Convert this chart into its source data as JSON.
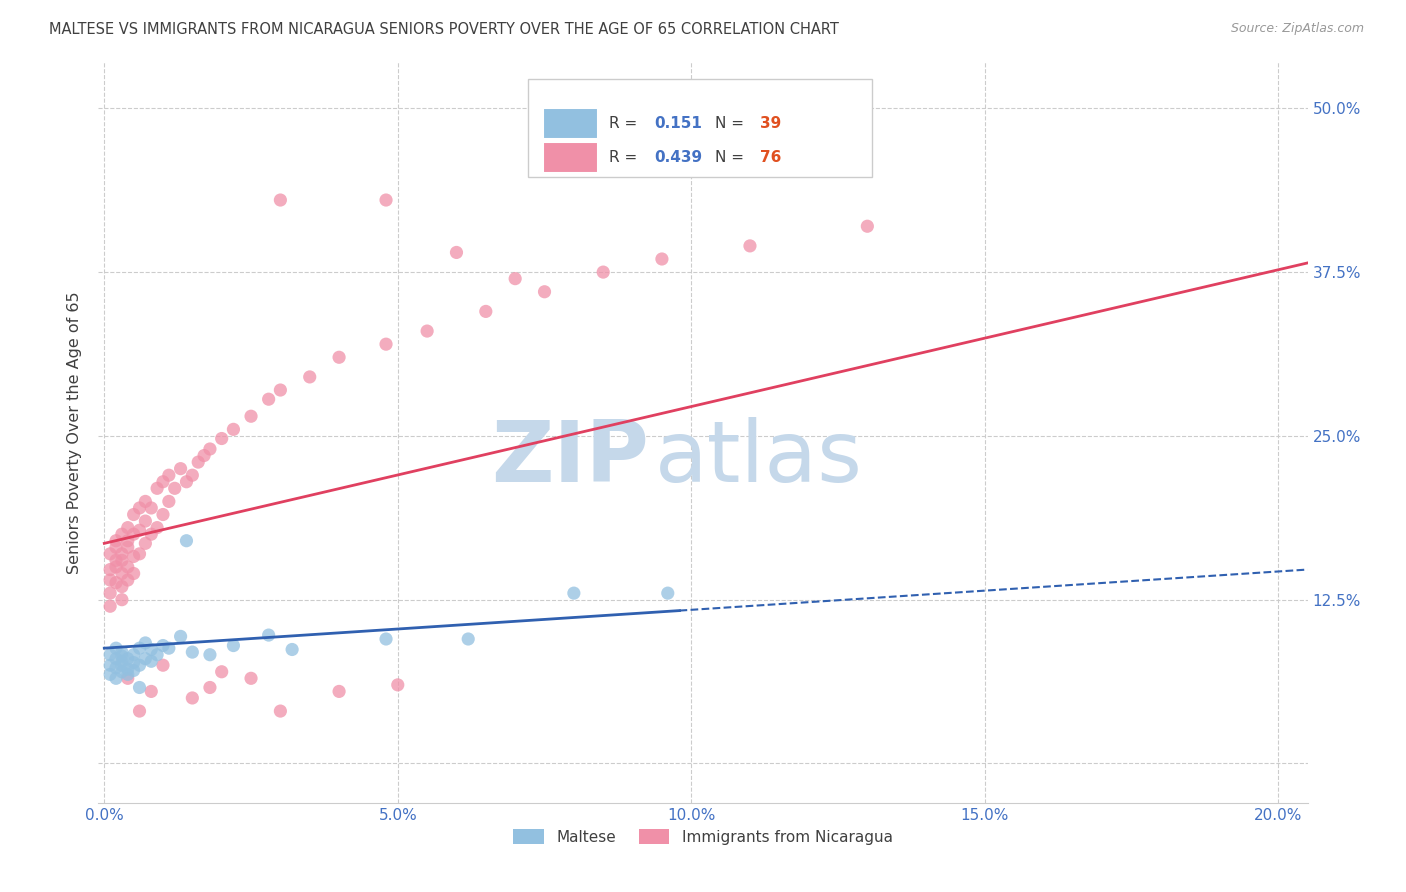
{
  "title": "MALTESE VS IMMIGRANTS FROM NICARAGUA SENIORS POVERTY OVER THE AGE OF 65 CORRELATION CHART",
  "source": "Source: ZipAtlas.com",
  "ylabel": "Seniors Poverty Over the Age of 65",
  "ytick_values": [
    0.0,
    0.125,
    0.25,
    0.375,
    0.5
  ],
  "xtick_values": [
    0.0,
    0.05,
    0.1,
    0.15,
    0.2
  ],
  "xlim": [
    -0.001,
    0.205
  ],
  "ylim": [
    -0.03,
    0.535
  ],
  "legend_R_values": [
    "0.151",
    "0.439"
  ],
  "legend_N_values": [
    "39",
    "76"
  ],
  "maltese_color": "#92c0e0",
  "nicaragua_color": "#f090a8",
  "trendline_maltese_solid_color": "#3060b0",
  "trendline_maltese_dash_color": "#3060b0",
  "trendline_nicaragua_color": "#e04060",
  "watermark_zip": "ZIP",
  "watermark_atlas": "atlas",
  "watermark_color": "#c5d8ea",
  "background_color": "#ffffff",
  "grid_color": "#cccccc",
  "axis_label_color": "#4472c4",
  "title_color": "#404040",
  "trendline_nicaragua_x0": 0.0,
  "trendline_nicaragua_y0": 0.168,
  "trendline_nicaragua_x1": 0.205,
  "trendline_nicaragua_y1": 0.382,
  "trendline_maltese_x0": 0.0,
  "trendline_maltese_y0": 0.088,
  "trendline_maltese_x1": 0.205,
  "trendline_maltese_y1": 0.148,
  "trendline_maltese_solid_end": 0.098,
  "maltese_x": [
    0.001,
    0.001,
    0.001,
    0.002,
    0.002,
    0.002,
    0.002,
    0.003,
    0.003,
    0.003,
    0.003,
    0.003,
    0.004,
    0.004,
    0.004,
    0.005,
    0.005,
    0.005,
    0.006,
    0.006,
    0.007,
    0.007,
    0.008,
    0.008,
    0.009,
    0.01,
    0.011,
    0.013,
    0.015,
    0.018,
    0.022,
    0.028,
    0.032,
    0.048,
    0.062,
    0.08,
    0.096,
    0.014,
    0.006
  ],
  "maltese_y": [
    0.075,
    0.083,
    0.068,
    0.08,
    0.073,
    0.088,
    0.065,
    0.078,
    0.082,
    0.07,
    0.085,
    0.075,
    0.072,
    0.08,
    0.068,
    0.083,
    0.077,
    0.071,
    0.088,
    0.075,
    0.092,
    0.08,
    0.087,
    0.078,
    0.083,
    0.09,
    0.088,
    0.097,
    0.085,
    0.083,
    0.09,
    0.098,
    0.087,
    0.095,
    0.095,
    0.13,
    0.13,
    0.17,
    0.058
  ],
  "nicaragua_x": [
    0.001,
    0.001,
    0.001,
    0.001,
    0.001,
    0.002,
    0.002,
    0.002,
    0.002,
    0.002,
    0.003,
    0.003,
    0.003,
    0.003,
    0.003,
    0.003,
    0.004,
    0.004,
    0.004,
    0.004,
    0.004,
    0.005,
    0.005,
    0.005,
    0.005,
    0.006,
    0.006,
    0.006,
    0.007,
    0.007,
    0.007,
    0.008,
    0.008,
    0.009,
    0.009,
    0.01,
    0.01,
    0.011,
    0.011,
    0.012,
    0.013,
    0.014,
    0.015,
    0.016,
    0.017,
    0.018,
    0.02,
    0.022,
    0.025,
    0.028,
    0.03,
    0.035,
    0.04,
    0.048,
    0.055,
    0.065,
    0.075,
    0.085,
    0.095,
    0.11,
    0.13,
    0.05,
    0.04,
    0.03,
    0.025,
    0.02,
    0.018,
    0.015,
    0.01,
    0.008,
    0.006,
    0.004,
    0.03,
    0.048,
    0.06,
    0.07
  ],
  "nicaragua_y": [
    0.13,
    0.148,
    0.16,
    0.12,
    0.14,
    0.155,
    0.17,
    0.138,
    0.15,
    0.165,
    0.125,
    0.145,
    0.16,
    0.175,
    0.135,
    0.155,
    0.14,
    0.165,
    0.18,
    0.15,
    0.17,
    0.158,
    0.175,
    0.19,
    0.145,
    0.16,
    0.178,
    0.195,
    0.168,
    0.185,
    0.2,
    0.175,
    0.195,
    0.18,
    0.21,
    0.19,
    0.215,
    0.2,
    0.22,
    0.21,
    0.225,
    0.215,
    0.22,
    0.23,
    0.235,
    0.24,
    0.248,
    0.255,
    0.265,
    0.278,
    0.285,
    0.295,
    0.31,
    0.32,
    0.33,
    0.345,
    0.36,
    0.375,
    0.385,
    0.395,
    0.41,
    0.06,
    0.055,
    0.04,
    0.065,
    0.07,
    0.058,
    0.05,
    0.075,
    0.055,
    0.04,
    0.065,
    0.43,
    0.43,
    0.39,
    0.37
  ]
}
